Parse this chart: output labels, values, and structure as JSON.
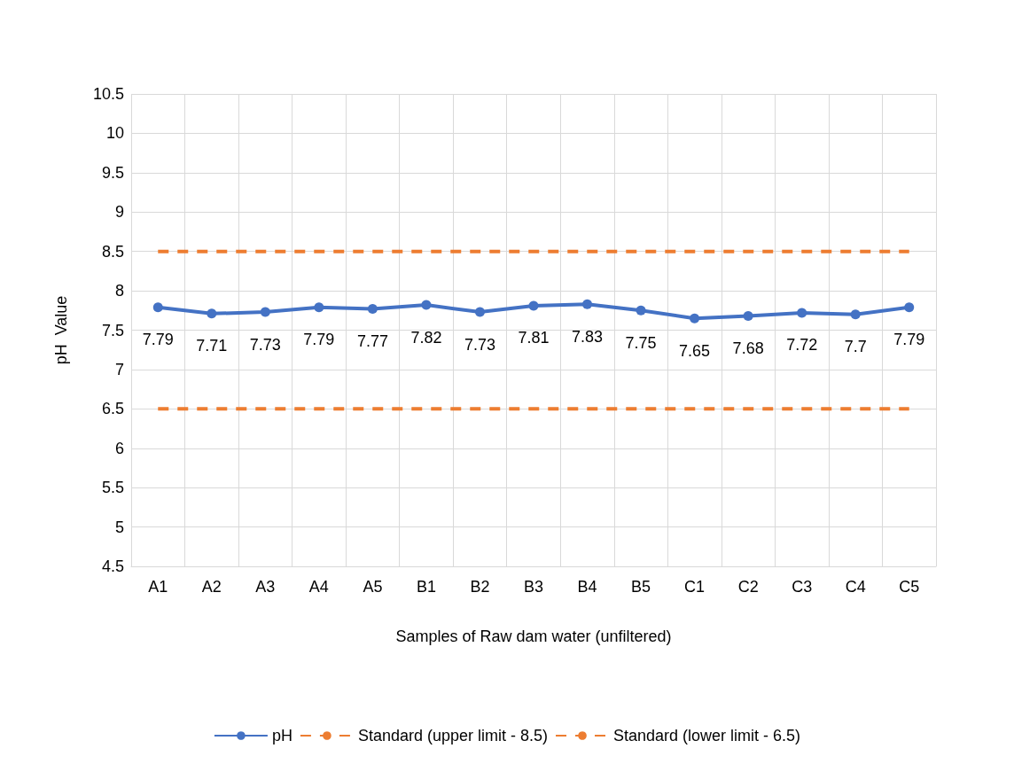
{
  "chart_data": {
    "type": "line",
    "xlabel": "Samples of Raw dam water (unfiltered)",
    "ylabel": "pH  Value",
    "categories": [
      "A1",
      "A2",
      "A3",
      "A4",
      "A5",
      "B1",
      "B2",
      "B3",
      "B4",
      "B5",
      "C1",
      "C2",
      "C3",
      "C4",
      "C5"
    ],
    "series": [
      {
        "name": "pH",
        "color": "#4472c4",
        "marker": "circle",
        "line_style": "solid",
        "values": [
          7.79,
          7.71,
          7.73,
          7.79,
          7.77,
          7.82,
          7.73,
          7.81,
          7.83,
          7.75,
          7.65,
          7.68,
          7.72,
          7.7,
          7.79
        ],
        "value_labels": [
          "7.79",
          "7.71",
          "7.73",
          "7.79",
          "7.77",
          "7.82",
          "7.73",
          "7.81",
          "7.83",
          "7.75",
          "7.65",
          "7.68",
          "7.72",
          "7.7",
          "7.79"
        ]
      },
      {
        "name": "Standard (upper limit - 8.5)",
        "color": "#ed7d31",
        "marker": "none",
        "line_style": "dashed",
        "values": [
          8.5,
          8.5,
          8.5,
          8.5,
          8.5,
          8.5,
          8.5,
          8.5,
          8.5,
          8.5,
          8.5,
          8.5,
          8.5,
          8.5,
          8.5
        ]
      },
      {
        "name": "Standard (lower limit - 6.5)",
        "color": "#ed7d31",
        "marker": "none",
        "line_style": "dashed",
        "values": [
          6.5,
          6.5,
          6.5,
          6.5,
          6.5,
          6.5,
          6.5,
          6.5,
          6.5,
          6.5,
          6.5,
          6.5,
          6.5,
          6.5,
          6.5
        ]
      }
    ],
    "ylim": [
      4.5,
      10.5
    ],
    "yticks": [
      4.5,
      5,
      5.5,
      6,
      6.5,
      7,
      7.5,
      8,
      8.5,
      9,
      9.5,
      10,
      10.5
    ],
    "grid": true,
    "legend": "bottom"
  }
}
